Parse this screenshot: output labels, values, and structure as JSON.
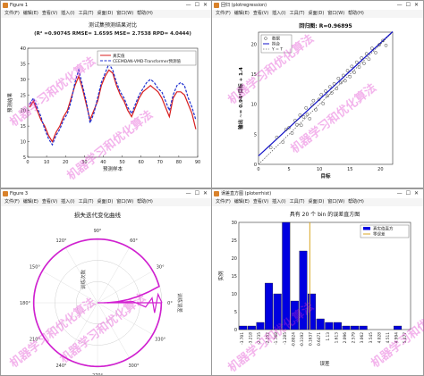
{
  "watermark": "机器学习和优化算法",
  "menu_labels": [
    "文件(F)",
    "编辑(E)",
    "查看(V)",
    "插入(I)",
    "工具(T)",
    "桌面(D)",
    "窗口(W)",
    "帮助(H)"
  ],
  "windows": {
    "figure1": {
      "title": "Figure 1"
    },
    "figure2": {
      "title": "回归 (plotregression)"
    },
    "figure3": {
      "title": "Figure 3"
    },
    "figure4": {
      "title": "误差直方图 (ploterrhist)"
    }
  },
  "chart_data": [
    {
      "type": "line",
      "title": "测试集预测结果对比",
      "subtitle": "(R² =0.90745 RMSE= 1.6595 MSE= 2.7538 RPD= 4.0444)",
      "xlabel": "预测样本",
      "ylabel": "预测结果",
      "xlim": [
        0,
        90
      ],
      "ylim": [
        5,
        40
      ],
      "xticks": [
        0,
        10,
        20,
        30,
        40,
        50,
        60,
        70,
        80,
        90
      ],
      "yticks": [
        5,
        10,
        15,
        20,
        25,
        30,
        35,
        40
      ],
      "x": [
        1,
        3,
        5,
        7,
        9,
        11,
        13,
        15,
        17,
        19,
        21,
        23,
        25,
        27,
        29,
        31,
        33,
        35,
        37,
        39,
        41,
        43,
        45,
        47,
        49,
        51,
        53,
        55,
        57,
        59,
        61,
        63,
        65,
        67,
        69,
        71,
        73,
        75,
        77,
        79,
        81,
        83,
        85,
        87,
        89
      ],
      "series": [
        {
          "name": "真实值",
          "color": "#d81e1e",
          "values": [
            21,
            23,
            20,
            17,
            15,
            12,
            10,
            13,
            15,
            18,
            20,
            24,
            28,
            31,
            27,
            22,
            17,
            20,
            23,
            28,
            31,
            33,
            32,
            28,
            25,
            23,
            20,
            18,
            21,
            24,
            26,
            27,
            28,
            27,
            26,
            24,
            21,
            18,
            24,
            26,
            26,
            25,
            22,
            19,
            14
          ]
        },
        {
          "name": "CEEMDAN-VMD-Transformer预测值",
          "color": "#1f2fd0",
          "values": [
            22,
            24,
            21,
            18,
            14,
            11,
            9,
            12,
            14,
            17,
            19,
            23,
            29,
            33,
            28,
            23,
            16,
            19,
            24,
            29,
            32,
            35,
            33,
            29,
            26,
            24,
            21,
            19,
            22,
            25,
            27,
            29,
            30,
            29,
            27,
            26,
            23,
            20,
            25,
            28,
            29,
            28,
            24,
            21,
            17
          ]
        }
      ]
    },
    {
      "type": "scatter",
      "title": "回归图: R=0.96895",
      "xlabel": "目标",
      "ylabel": "输出 ~= 0.94*目标 + 1.4",
      "xlim": [
        0,
        22
      ],
      "ylim": [
        0,
        22
      ],
      "xticks": [
        0,
        5,
        10,
        15,
        20
      ],
      "yticks": [
        0,
        5,
        10,
        15,
        20
      ],
      "legend": [
        "数据",
        "拟合",
        "Y = T"
      ],
      "fit": {
        "slope": 0.94,
        "intercept": 1.4
      },
      "points": [
        [
          2,
          2.8
        ],
        [
          3,
          4.5
        ],
        [
          4,
          3.7
        ],
        [
          4.5,
          5.8
        ],
        [
          5,
          6.1
        ],
        [
          5.5,
          5.2
        ],
        [
          6,
          7.3
        ],
        [
          6.3,
          6.6
        ],
        [
          6.8,
          8.2
        ],
        [
          7,
          6.5
        ],
        [
          7.4,
          7.9
        ],
        [
          7.8,
          9.4
        ],
        [
          8,
          8.3
        ],
        [
          8.4,
          7.6
        ],
        [
          8.8,
          9.9
        ],
        [
          9,
          10.6
        ],
        [
          9.4,
          9.1
        ],
        [
          9.9,
          10.8
        ],
        [
          10.3,
          11.6
        ],
        [
          10.6,
          10.1
        ],
        [
          11,
          12.2
        ],
        [
          11.3,
          11.4
        ],
        [
          11.7,
          12.9
        ],
        [
          12,
          11.9
        ],
        [
          12.4,
          13.4
        ],
        [
          12.8,
          12.6
        ],
        [
          13.1,
          14.3
        ],
        [
          13.5,
          13.6
        ],
        [
          13.9,
          14.8
        ],
        [
          14.2,
          13.9
        ],
        [
          14.6,
          15.6
        ],
        [
          15,
          14.6
        ],
        [
          15.3,
          16.3
        ],
        [
          15.7,
          15.3
        ],
        [
          16.1,
          17
        ],
        [
          16.5,
          16.2
        ],
        [
          16.9,
          17.7
        ],
        [
          17.3,
          16.8
        ],
        [
          17.7,
          18.4
        ],
        [
          18.1,
          17.5
        ],
        [
          18.6,
          19.3
        ],
        [
          19.2,
          18.6
        ],
        [
          19.8,
          19.9
        ],
        [
          20.4,
          20.6
        ],
        [
          20.9,
          19.8
        ]
      ]
    },
    {
      "type": "line",
      "title": "损失迭代变化曲线",
      "radial_label": "训练次数",
      "angular_label": "训练误差",
      "angle_ticks": [
        "0°",
        "30°",
        "60°",
        "90°",
        "120°",
        "150°",
        "180°",
        "210°",
        "240°",
        "270°",
        "300°",
        "330°"
      ],
      "color": "#d11ed1"
    },
    {
      "type": "bar",
      "title": "具有 20 个 bin 的误差直方图",
      "xlabel": "误差",
      "ylabel": "实例",
      "ylim": [
        0,
        30
      ],
      "yticks": [
        0,
        5,
        10,
        15,
        20,
        25,
        30
      ],
      "categories": [
        "-3.701",
        "-3.218",
        "-2.735",
        "-2.252",
        "-1.768",
        "-1.285",
        "-0.8024",
        "-0.3192",
        "0.1637",
        "0.6471",
        "1.13",
        "1.613",
        "2.096",
        "2.579",
        "3.062",
        "3.545",
        "4.028",
        "4.511",
        "4.994",
        "5.477"
      ],
      "values": [
        1,
        1,
        2,
        13,
        10,
        30,
        8,
        22,
        10,
        3,
        2,
        2,
        1,
        1,
        1,
        0,
        0,
        0,
        1,
        0
      ],
      "legend": [
        "真实值直方",
        "零误差"
      ],
      "zero_error_value": 0.05,
      "bar_color": "#0000e0",
      "zero_line_color": "#d9a520"
    }
  ]
}
